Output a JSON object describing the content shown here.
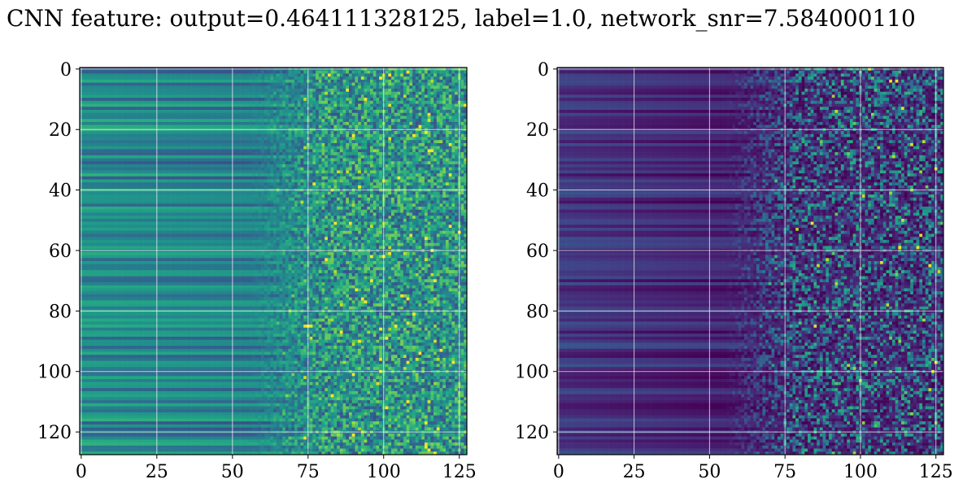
{
  "title": "CNN feature: output=0.464111328125, label=1.0, network_snr=7.584000110",
  "colors": {
    "colormap": "viridis",
    "grid": "#ffffff",
    "axes": "#000000",
    "background": "#ffffff"
  },
  "chart_data": [
    {
      "type": "heatmap",
      "title": "",
      "xlabel": "",
      "ylabel": "",
      "shape": [
        128,
        128
      ],
      "xlim": [
        -0.5,
        127.5
      ],
      "ylim": [
        127.5,
        -0.5
      ],
      "xticks": [
        0,
        25,
        50,
        75,
        100,
        125
      ],
      "yticks": [
        0,
        20,
        40,
        60,
        80,
        100,
        120
      ],
      "grid": true,
      "colormap": "viridis",
      "value_range": [
        0,
        1
      ],
      "description_of_values": "normalized feature intensity; low-frequency columns (0-50) dominated by horizontal bands, columns 75+ noisy"
    },
    {
      "type": "heatmap",
      "title": "",
      "xlabel": "",
      "ylabel": "",
      "shape": [
        128,
        128
      ],
      "xlim": [
        -0.5,
        127.5
      ],
      "ylim": [
        127.5,
        -0.5
      ],
      "xticks": [
        0,
        25,
        50,
        75,
        100,
        125
      ],
      "yticks": [
        0,
        20,
        40,
        60,
        80,
        100,
        120
      ],
      "grid": true,
      "colormap": "viridis",
      "value_range": [
        0,
        1
      ],
      "description_of_values": "normalized feature intensity; mostly low (dark) values, sparse bright pixels for columns 70+"
    }
  ]
}
